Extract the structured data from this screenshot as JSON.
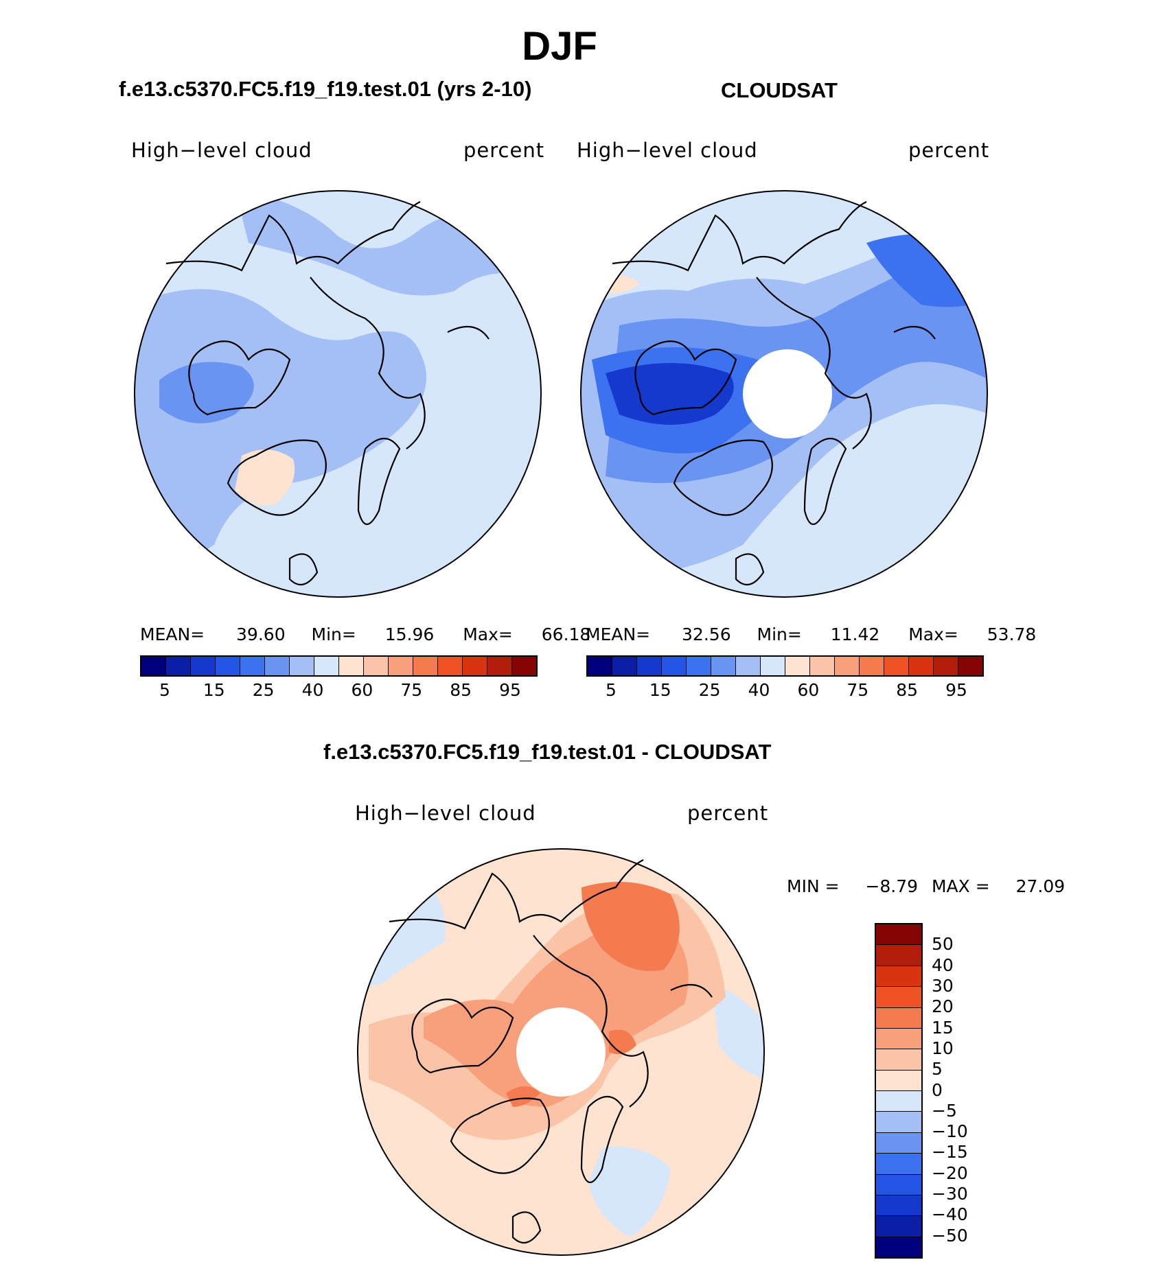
{
  "title": "DJF",
  "panels": {
    "model": {
      "title": "f.e13.c5370.FC5.f19_f19.test.01 (yrs 2-10)",
      "variable": "High−level cloud",
      "units": "percent",
      "mean_label": "MEAN=",
      "mean": "39.60",
      "min_label": "Min=",
      "min": "15.96",
      "max_label": "Max=",
      "max": "66.18"
    },
    "obs": {
      "title": "CLOUDSAT",
      "variable": "High−level cloud",
      "units": "percent",
      "mean_label": "MEAN=",
      "mean": "32.56",
      "min_label": "Min=",
      "min": "11.42",
      "max_label": "Max=",
      "max": "53.78"
    },
    "diff": {
      "title": "f.e13.c5370.FC5.f19_f19.test.01 - CLOUDSAT",
      "variable": "High−level cloud",
      "units": "percent",
      "min_label": "MIN =",
      "min": "−8.79",
      "max_label": "MAX =",
      "max": "27.09"
    }
  },
  "colorbar_main": {
    "colors": [
      "#00007f",
      "#0a1ea6",
      "#1439cc",
      "#2455e6",
      "#3c72ef",
      "#6a94f2",
      "#a3bff6",
      "#d6e6fb",
      "#fde3d0",
      "#fbc4a6",
      "#f8a07c",
      "#f47a50",
      "#ee5225",
      "#d9330f",
      "#b11f0c",
      "#850505"
    ],
    "labels": [
      "5",
      "15",
      "25",
      "40",
      "60",
      "75",
      "85",
      "95"
    ]
  },
  "colorbar_diff": {
    "colors": [
      "#850505",
      "#b11f0c",
      "#d9330f",
      "#ee5225",
      "#f47a50",
      "#f8a07c",
      "#fbc4a6",
      "#fde3d0",
      "#d6e6fb",
      "#a3bff6",
      "#6a94f2",
      "#3c72ef",
      "#2455e6",
      "#1439cc",
      "#0a1ea6",
      "#00007f"
    ],
    "labels": [
      "50",
      "40",
      "30",
      "20",
      "15",
      "10",
      "5",
      "0",
      "−5",
      "−10",
      "−15",
      "−20",
      "−30",
      "−40",
      "−50"
    ]
  }
}
